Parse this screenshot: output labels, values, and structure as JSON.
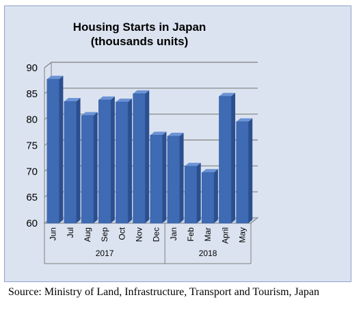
{
  "chart_data": {
    "type": "bar",
    "title": [
      "Housing Starts in Japan",
      "(thousands units)"
    ],
    "categories": [
      "Jun",
      "Jul",
      "Aug",
      "Sep",
      "Oct",
      "Nov",
      "Dec",
      "Jan",
      "Feb",
      "Mar",
      "April",
      "May"
    ],
    "values": [
      87.8,
      83.5,
      80.8,
      83.8,
      83.4,
      85.0,
      77.0,
      76.8,
      71.0,
      69.8,
      84.5,
      79.6
    ],
    "groups": [
      {
        "label": "2017",
        "start": 0,
        "end": 6
      },
      {
        "label": "2018",
        "start": 7,
        "end": 11
      }
    ],
    "yticks": [
      60,
      65,
      70,
      75,
      80,
      85,
      90
    ],
    "ylim": [
      60,
      90
    ],
    "xlabel": "",
    "ylabel": "",
    "grid": true,
    "legend": "none",
    "colors": {
      "bar_front": "#3f6ab4",
      "bar_side": "#2b4f8e",
      "bar_top": "#6b93d6",
      "background": "#dbe3f0",
      "grid": "#7f7f7f"
    }
  },
  "source": "Source: Ministry of Land, Infrastructure, Transport and Tourism, Japan"
}
